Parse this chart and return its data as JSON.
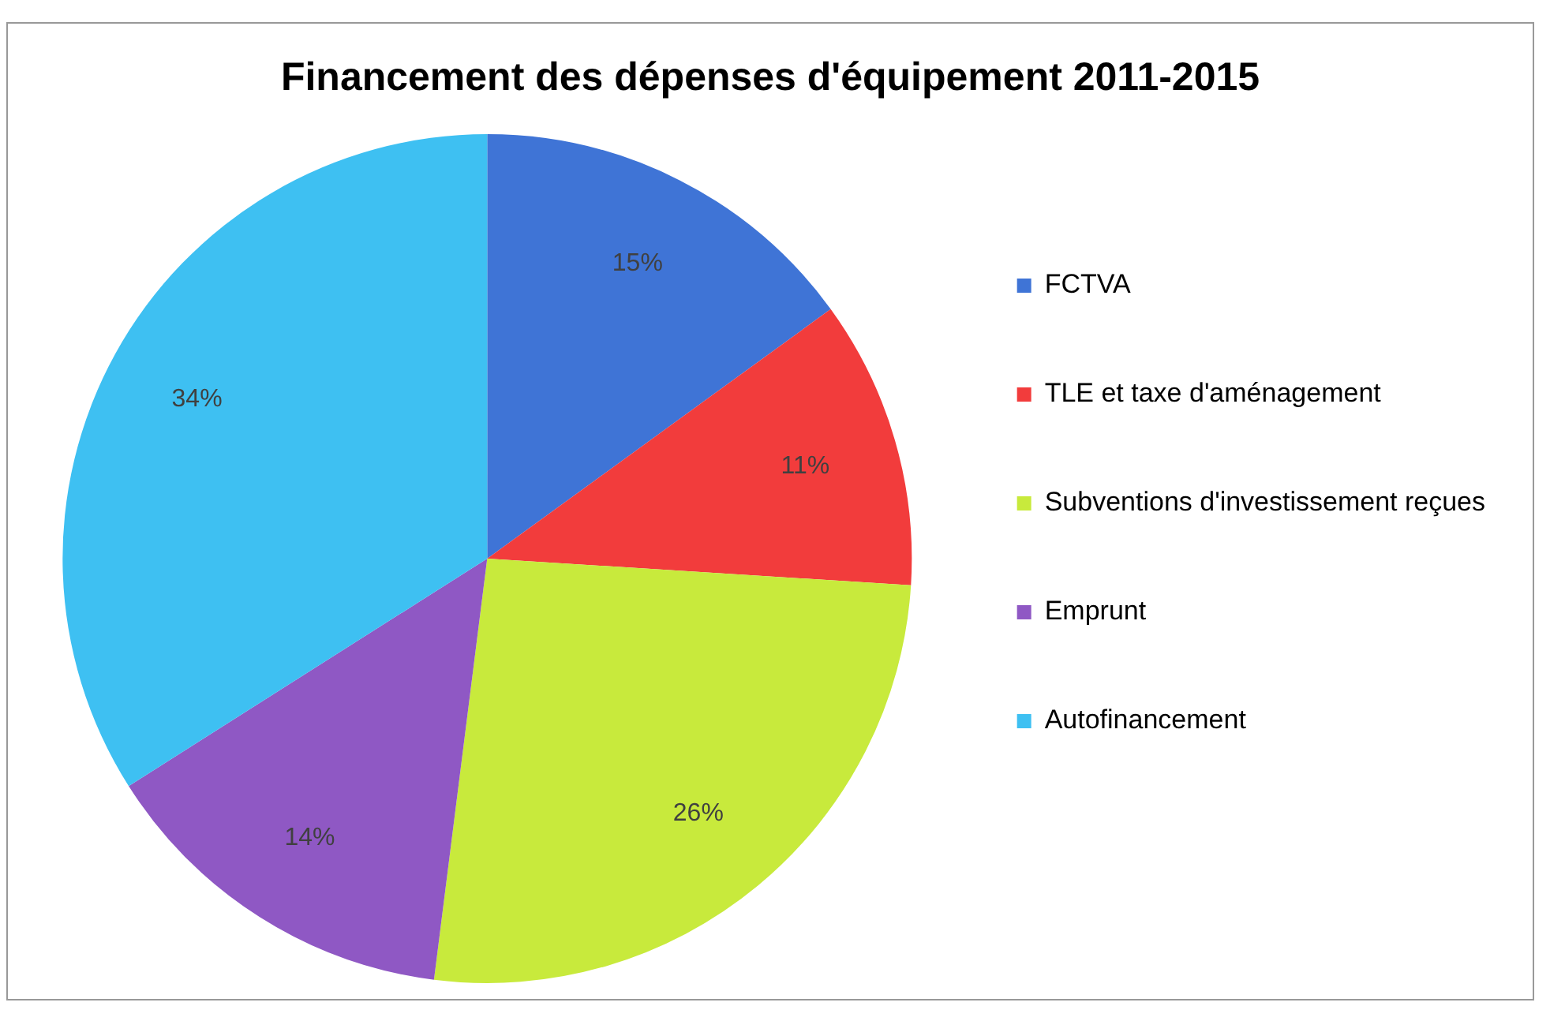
{
  "chart_data": {
    "type": "pie",
    "title": "Financement des dépenses d'équipement 2011-2015",
    "categories": [
      "FCTVA",
      "TLE et taxe d'aménagement",
      "Subventions d'investissement reçues",
      "Emprunt",
      "Autofinancement"
    ],
    "values": [
      15,
      11,
      26,
      14,
      34
    ],
    "colors": [
      "#3f74d6",
      "#f23c3c",
      "#c8ea3c",
      "#8f58c4",
      "#3ec0f2"
    ],
    "value_labels": [
      "15%",
      "11%",
      "26%",
      "14%",
      "34%"
    ],
    "legend": "right"
  }
}
